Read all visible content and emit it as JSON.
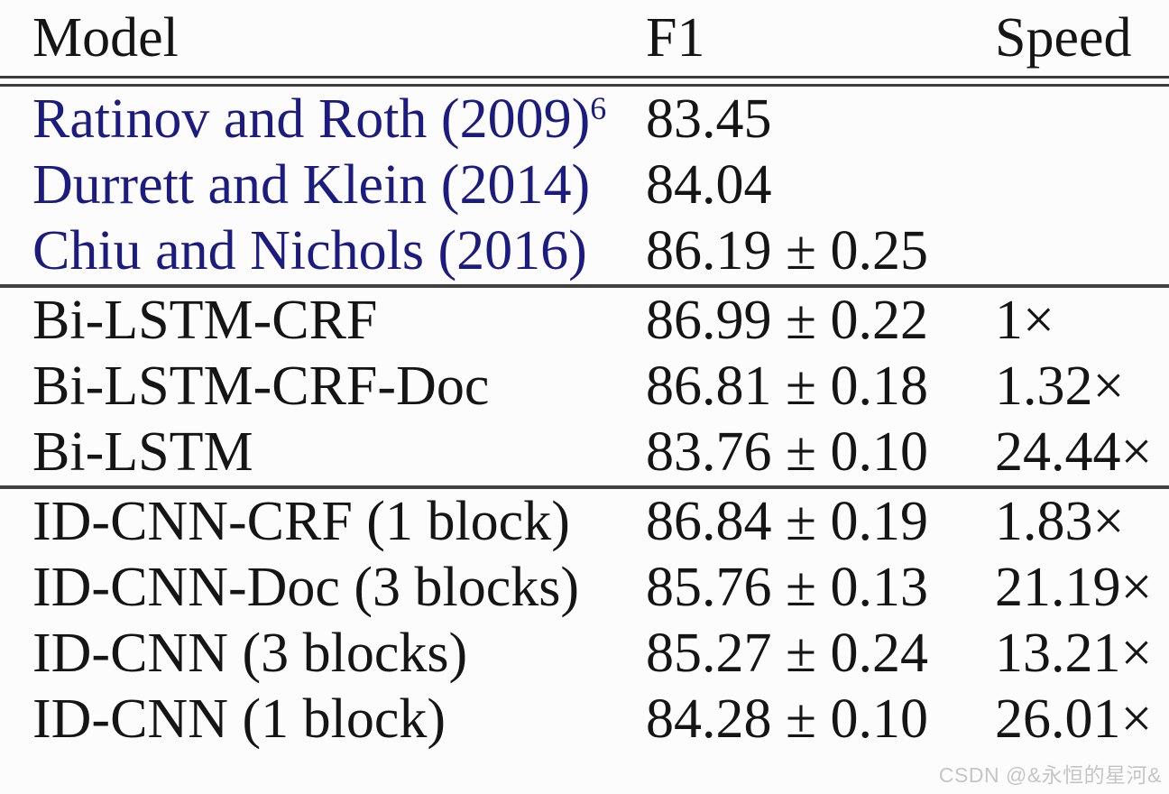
{
  "header": {
    "model": "Model",
    "f1": "F1",
    "speed": "Speed"
  },
  "colors": {
    "link_blue": "#1c1c80",
    "text": "#151515",
    "rule": "#3c3c3c",
    "watermark_gray": "#c5c5c5"
  },
  "sections": [
    {
      "rows": [
        {
          "model": "Ratinov and Roth (2009)",
          "sup": "6",
          "f1": "83.45",
          "speed": ""
        },
        {
          "model": "Durrett and Klein (2014)",
          "sup": "",
          "f1": "84.04",
          "speed": ""
        },
        {
          "model": "Chiu and Nichols (2016)",
          "sup": "",
          "f1": "86.19 ± 0.25",
          "speed": ""
        }
      ]
    },
    {
      "rows": [
        {
          "model": "Bi-LSTM-CRF",
          "sup": "",
          "f1": "86.99 ± 0.22",
          "speed": "1×"
        },
        {
          "model": "Bi-LSTM-CRF-Doc",
          "sup": "",
          "f1": "86.81 ± 0.18",
          "speed": "1.32×"
        },
        {
          "model": "Bi-LSTM",
          "sup": "",
          "f1": "83.76 ± 0.10",
          "speed": "24.44×"
        }
      ]
    },
    {
      "rows": [
        {
          "model": "ID-CNN-CRF (1 block)",
          "sup": "",
          "f1": "86.84 ± 0.19",
          "speed": "1.83×"
        },
        {
          "model": "ID-CNN-Doc (3 blocks)",
          "sup": "",
          "f1": "85.76 ± 0.13",
          "speed": "21.19×"
        },
        {
          "model": "ID-CNN (3 blocks)",
          "sup": "",
          "f1": "85.27 ± 0.24",
          "speed": "13.21×"
        },
        {
          "model": "ID-CNN (1 block)",
          "sup": "",
          "f1": "84.28 ± 0.10",
          "speed": "26.01×"
        }
      ]
    }
  ],
  "watermark": "CSDN @&永恒的星河&"
}
